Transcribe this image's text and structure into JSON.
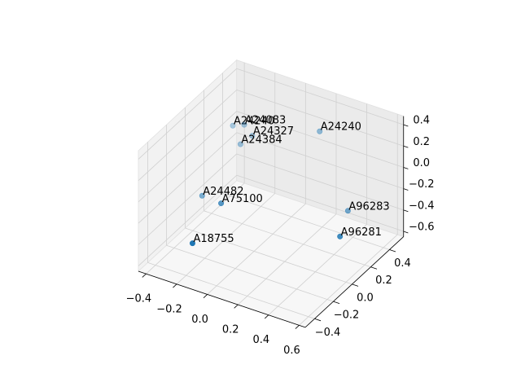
{
  "chart_data": {
    "type": "scatter3d",
    "x": [
      -0.2,
      -0.15,
      -0.11,
      -0.15,
      0.19,
      -0.26,
      -0.13,
      -0.17,
      0.35,
      0.39
    ],
    "y": [
      0.1,
      0.14,
      0.16,
      0.1,
      0.39,
      -0.13,
      -0.14,
      -0.38,
      0.43,
      0.28
    ],
    "z": [
      0.35,
      0.35,
      0.25,
      0.2,
      0.25,
      -0.15,
      -0.15,
      -0.35,
      -0.45,
      -0.55
    ],
    "labels": [
      "A24240",
      "A24083",
      "A24327",
      "A24384",
      "A24240",
      "A24482",
      "A75100",
      "A18755",
      "A96283",
      "A96281"
    ],
    "color": "#1f77b4",
    "xlim": [
      -0.45,
      0.64
    ],
    "ylim": [
      -0.5,
      0.55
    ],
    "zlim": [
      -0.65,
      0.48
    ],
    "xticks": [
      {
        "value": -0.4,
        "label": "−0.4"
      },
      {
        "value": -0.2,
        "label": "−0.2"
      },
      {
        "value": 0,
        "label": "0.0"
      },
      0.2,
      0.4,
      0.6
    ],
    "yticks": [
      {
        "value": -0.4,
        "label": "−0.4"
      },
      {
        "value": -0.2,
        "label": "−0.2"
      },
      {
        "value": 0,
        "label": "0.0"
      },
      0.2,
      0.4
    ],
    "zticks": [
      {
        "value": -0.6,
        "label": "−0.6"
      },
      {
        "value": -0.4,
        "label": "−0.4"
      },
      {
        "value": -0.2,
        "label": "−0.2"
      },
      {
        "value": 0,
        "label": "0.0"
      },
      0.2,
      0.4
    ],
    "grid": true
  }
}
